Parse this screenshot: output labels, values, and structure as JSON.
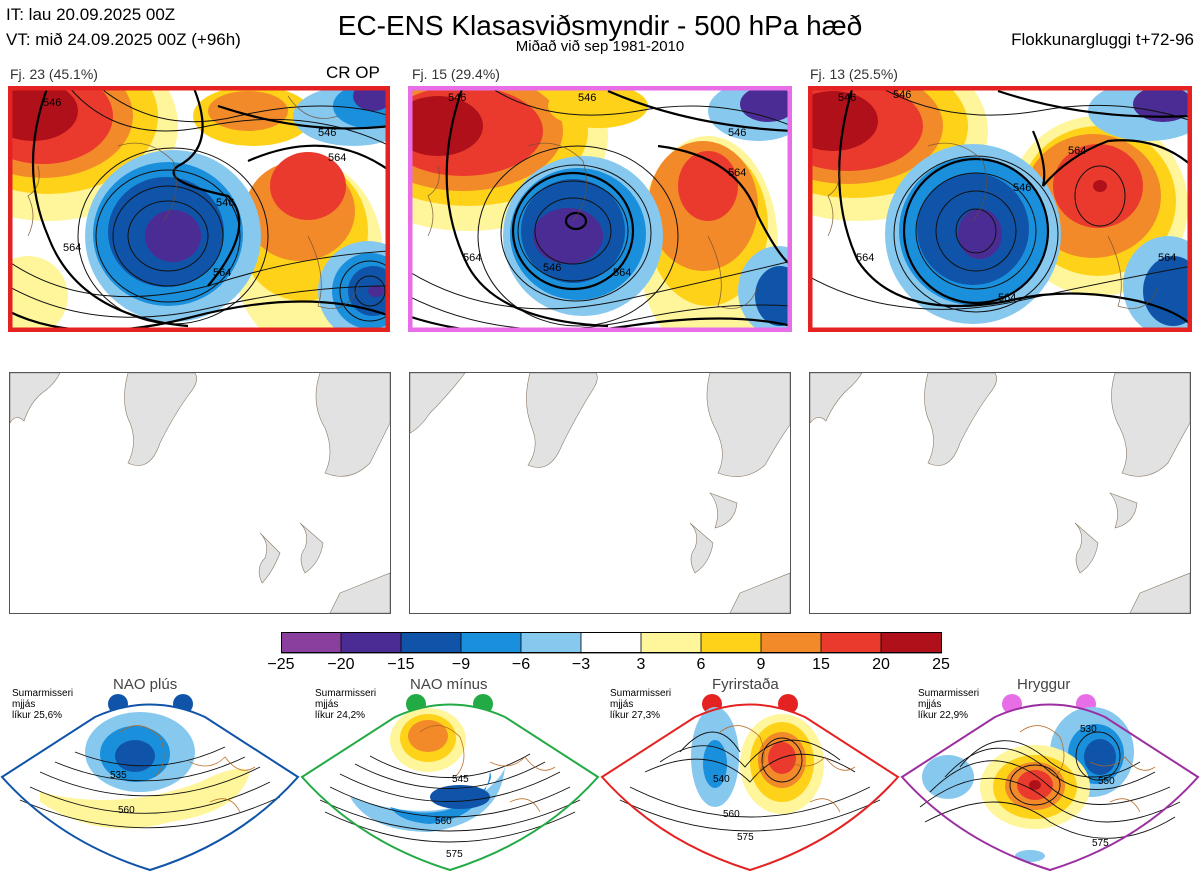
{
  "header": {
    "it": "IT: lau 20.09.2025 00Z",
    "vt": "VT: mið 24.09.2025 00Z  (+96h)",
    "title": "EC-ENS Klasasviðsmyndir - 500 hPa hæð",
    "subtitle": "Miðað við sep 1981-2010",
    "window": "Flokkunargluggi t+72-96"
  },
  "clusters": [
    {
      "label": "Fj. 23 (45.1%)",
      "tag": "CR OP",
      "frame_color": "#e52222",
      "contours": [
        "546",
        "564",
        "546",
        "564",
        "564",
        "546"
      ]
    },
    {
      "label": "Fj. 15 (29.4%)",
      "tag": "",
      "frame_color": "#e86ee8",
      "contours": [
        "546",
        "564",
        "546",
        "546",
        "564",
        "564",
        "546"
      ]
    },
    {
      "label": "Fj. 13 (25.5%)",
      "tag": "",
      "frame_color": "#e52222",
      "contours": [
        "546",
        "546",
        "564",
        "546",
        "564",
        "564",
        "564"
      ]
    }
  ],
  "colorbar": {
    "ticks": [
      "−25",
      "−20",
      "−15",
      "−9",
      "−6",
      "−3",
      "3",
      "6",
      "9",
      "15",
      "20",
      "25"
    ],
    "colors": [
      "#8a3f9e",
      "#4b2c94",
      "#0f54a8",
      "#1a8fdc",
      "#87c8ef",
      "#ffffff",
      "#fff59a",
      "#ffd21a",
      "#f28a2a",
      "#ea3a2d",
      "#b01019"
    ]
  },
  "regimes": [
    {
      "name": "NAO plús",
      "season": "Sumarmisseri",
      "word": "mjjás",
      "prob": "líkur 25,6%",
      "dot_color": "#0f54a8",
      "frame_color": "#0f54a8",
      "contours": [
        "535",
        "560"
      ]
    },
    {
      "name": "NAO mínus",
      "season": "Sumarmisseri",
      "word": "mjjás",
      "prob": "líkur 24,2%",
      "dot_color": "#22aa44",
      "frame_color": "#22aa44",
      "contours": [
        "545",
        "560",
        "575"
      ]
    },
    {
      "name": "Fyrirstaða",
      "season": "Sumarmisseri",
      "word": "mjjás",
      "prob": "líkur 27,3%",
      "dot_color": "#e52222",
      "frame_color": "#e52222",
      "contours": [
        "540",
        "560",
        "575"
      ]
    },
    {
      "name": "Hryggur",
      "season": "Sumarmisseri",
      "word": "mjjás",
      "prob": "líkur 22,9%",
      "dot_color": "#e86ee8",
      "frame_color": "#9b2fa0",
      "contours": [
        "530",
        "550",
        "575"
      ]
    }
  ]
}
